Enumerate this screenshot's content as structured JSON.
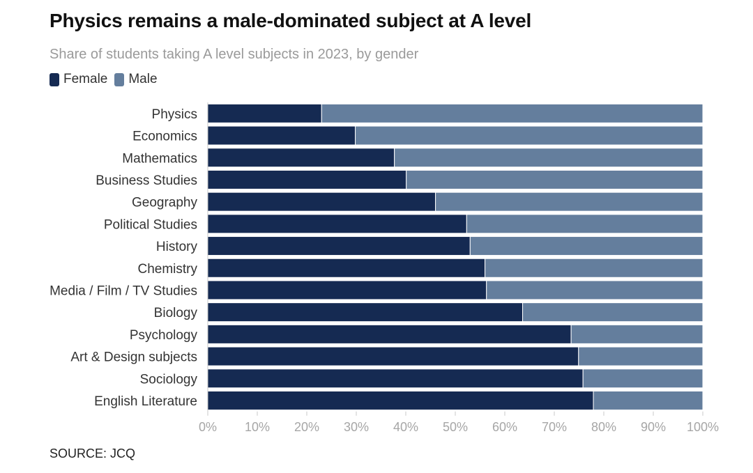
{
  "title": "Physics remains a male-dominated subject at A level",
  "subtitle": "Share of students taking A level subjects in 2023, by gender",
  "source": "SOURCE: JCQ",
  "colors": {
    "female": "#152a52",
    "male": "#647e9d",
    "axis": "#c8c8c8"
  },
  "chart_data": {
    "type": "bar",
    "orientation": "horizontal",
    "stacked": true,
    "categories": [
      "Physics",
      "Economics",
      "Mathematics",
      "Business Studies",
      "Geography",
      "Political Studies",
      "History",
      "Chemistry",
      "Media / Film / TV Studies",
      "Biology",
      "Psychology",
      "Art & Design subjects",
      "Sociology",
      "English Literature"
    ],
    "series": [
      {
        "name": "Female",
        "values": [
          23,
          29.8,
          37.7,
          40.1,
          46,
          52.3,
          53,
          56,
          56.3,
          63.6,
          73.4,
          74.9,
          75.8,
          77.9
        ]
      },
      {
        "name": "Male",
        "values": [
          77,
          70.2,
          62.3,
          59.9,
          54,
          47.7,
          47,
          44,
          43.7,
          36.4,
          26.6,
          25.1,
          24.2,
          22.1
        ]
      }
    ],
    "xlim": [
      0,
      100
    ],
    "x_ticks": [
      "0%",
      "10%",
      "20%",
      "30%",
      "40%",
      "50%",
      "60%",
      "70%",
      "80%",
      "90%",
      "100%"
    ],
    "grid": false,
    "legend_placement": "top-left"
  }
}
